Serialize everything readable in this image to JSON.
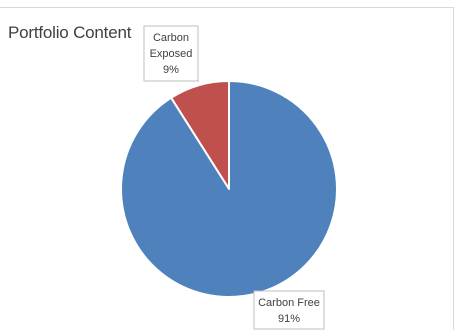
{
  "chart_data": {
    "type": "pie",
    "title": "Portfolio Content",
    "slices": [
      {
        "label": "Carbon Free",
        "value": 91,
        "value_label": "91%",
        "color": "#4f81bd"
      },
      {
        "label": "Carbon Exposed",
        "value": 9,
        "value_label": "9%",
        "color": "#c0504d"
      }
    ],
    "data_labels": [
      {
        "lines": [
          "Carbon",
          "Exposed",
          "9%"
        ]
      },
      {
        "lines": [
          "Carbon Free",
          "91%"
        ]
      }
    ],
    "start_angle_deg": 0,
    "direction": "counterclockwise"
  }
}
